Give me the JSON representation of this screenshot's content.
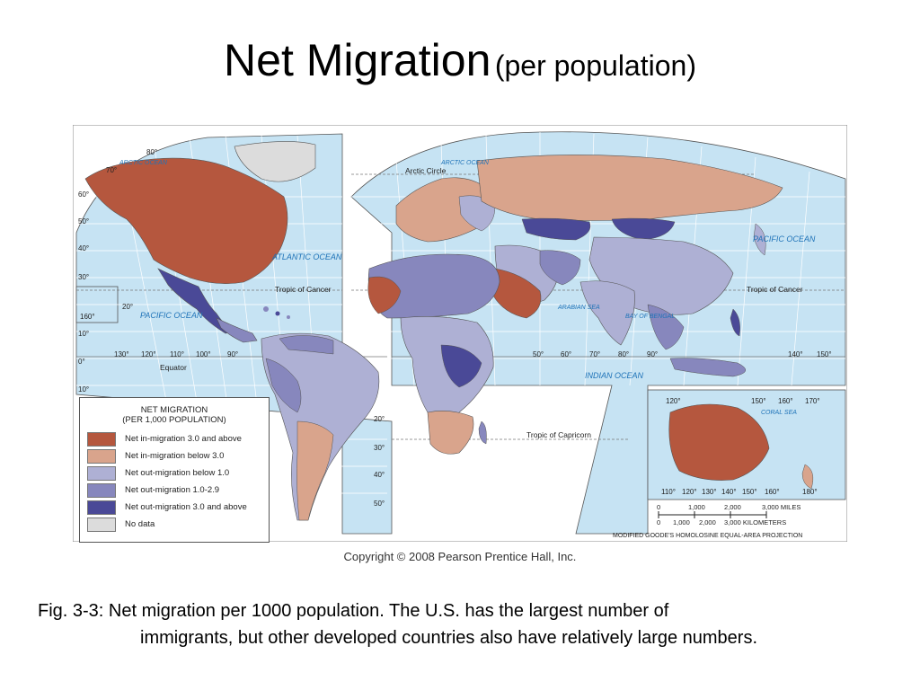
{
  "title": {
    "main": "Net Migration",
    "sub": "(per population)"
  },
  "map": {
    "oceans": [
      "ARCTIC OCEAN",
      "ARCTIC OCEAN",
      "ATLANTIC OCEAN",
      "PACIFIC OCEAN",
      "PACIFIC OCEAN",
      "INDIAN OCEAN",
      "ARABIAN SEA",
      "BAY OF BENGAL",
      "CORAL SEA"
    ],
    "lines": [
      "Arctic Circle",
      "Tropic of Cancer",
      "Tropic of Cancer",
      "Equator",
      "Tropic of Capricorn"
    ],
    "legend": {
      "title_line1": "NET MIGRATION",
      "title_line2": "(PER 1,000 POPULATION)",
      "items": [
        {
          "label": "Net in-migration 3.0 and above",
          "color": "#b5573e"
        },
        {
          "label": "Net in-migration below 3.0",
          "color": "#d9a48c"
        },
        {
          "label": "Net out-migration below 1.0",
          "color": "#aeb0d4"
        },
        {
          "label": "Net out-migration 1.0-2.9",
          "color": "#8787bd"
        },
        {
          "label": "Net out-migration 3.0 and above",
          "color": "#4a4997"
        },
        {
          "label": "No data",
          "color": "#dcdcdc"
        }
      ]
    },
    "scale": {
      "miles_ticks": [
        "0",
        "1,000",
        "2,000",
        "3,000 MILES"
      ],
      "km_ticks": [
        "0",
        "1,000",
        "2,000",
        "3,000 KILOMETERS"
      ]
    },
    "projection": "MODIFIED GOODE'S HOMOLOSINE EQUAL-AREA PROJECTION",
    "lat_labels": [
      "80°",
      "70°",
      "60°",
      "50°",
      "40°",
      "30°",
      "20°",
      "10°",
      "0°",
      "10°",
      "20°",
      "30°",
      "40°",
      "50°"
    ],
    "lon_labels": [
      "130°",
      "120°",
      "110°",
      "100°",
      "90°",
      "50°",
      "60°",
      "70°",
      "80°",
      "90°",
      "140°",
      "150°",
      "120°",
      "150°",
      "160°",
      "170°",
      "110°",
      "120°",
      "130°",
      "140°",
      "150°",
      "160°",
      "180°",
      "160°"
    ]
  },
  "copyright": "Copyright © 2008 Pearson Prentice Hall, Inc.",
  "caption": {
    "line1": "Fig. 3-3: Net migration per 1000 population.  The U.S. has the largest number of",
    "line2": "immigrants, but other developed countries also have relatively large numbers."
  }
}
